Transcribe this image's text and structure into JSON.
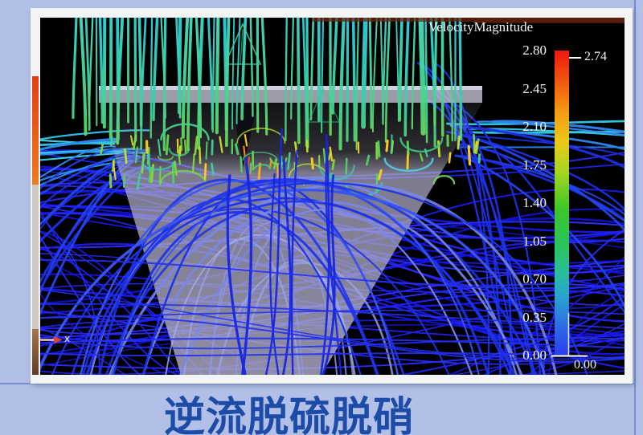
{
  "slide": {
    "background_color": "#b2c0e7",
    "caption": "逆流脱硫脱硝",
    "caption_color": "#1d4ba8"
  },
  "legend": {
    "title": "VelocityMagnitude",
    "ticks": [
      "2.80",
      "2.45",
      "2.10",
      "1.75",
      "1.40",
      "1.05",
      "0.70",
      "0.35",
      "0.00"
    ],
    "max_label": "2.74",
    "min_label": "0.00"
  },
  "axis_indicator": {
    "label": "x"
  },
  "chart_data": {
    "type": "streamline",
    "title": "VelocityMagnitude",
    "description": "CFD streamline visualization of a counter-flow desulfurization/denitrification tower: vertical cyan-green jets enter from the top, high-velocity yellow/orange region where flow impinges, blue low-velocity streamlines arch over and descend through a translucent inverted-cone vessel; colorbar encodes velocity magnitude (rainbow, red = high, blue = low)",
    "colorbar": {
      "label": "VelocityMagnitude",
      "range": [
        0.0,
        2.8
      ],
      "ticks": [
        2.8,
        2.45,
        2.1,
        1.75,
        1.4,
        1.05,
        0.7,
        0.35,
        0.0
      ],
      "max_value_marker": 2.74,
      "min_value_marker": 0.0,
      "colormap": "rainbow (red=high, blue=low)"
    },
    "caption": "逆流脱硫脱硝"
  }
}
